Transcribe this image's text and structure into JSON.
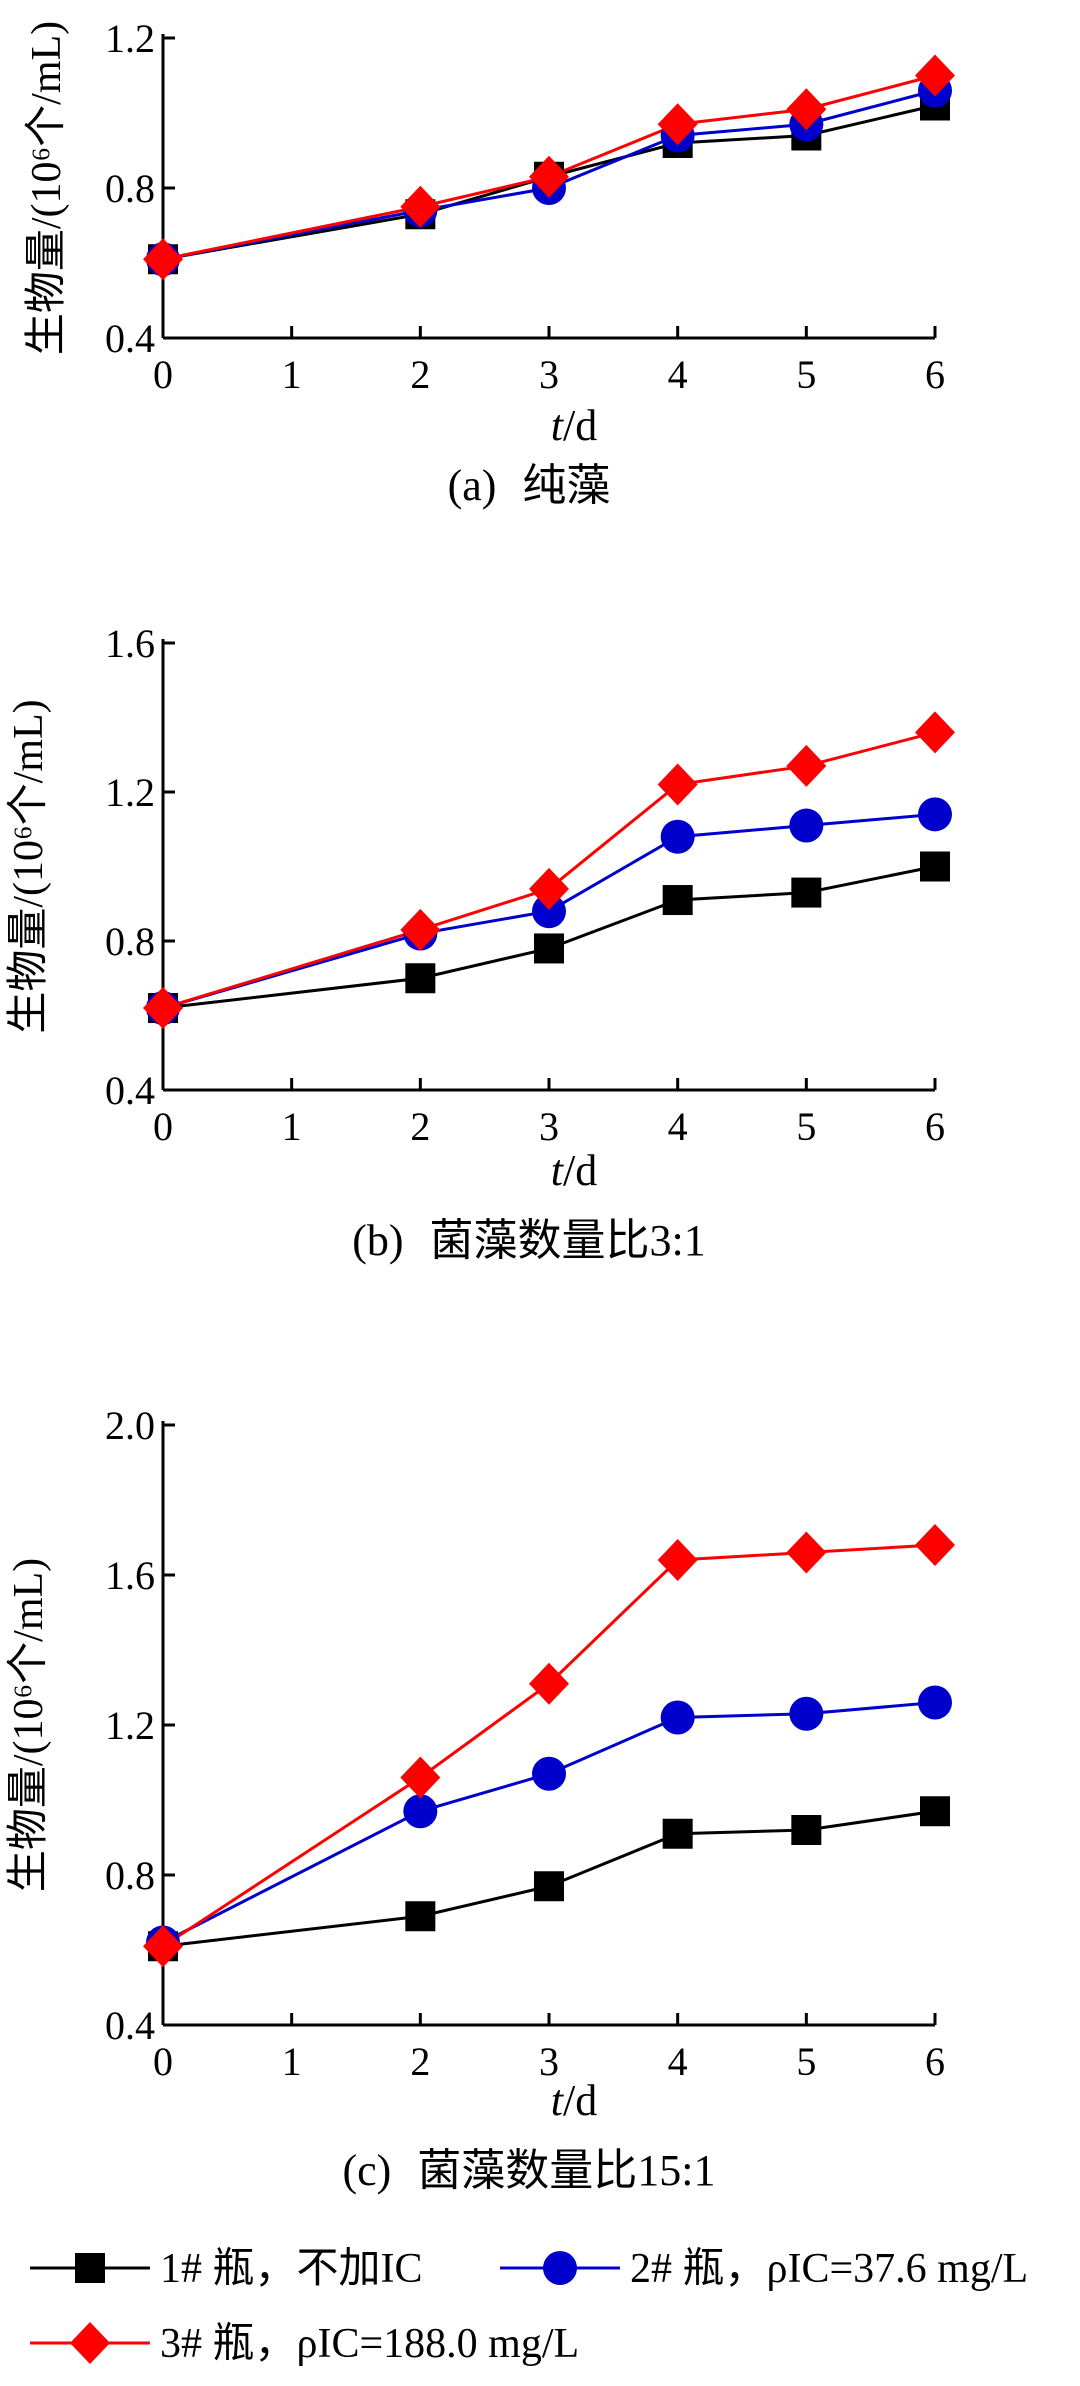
{
  "chart_data": [
    {
      "type": "line",
      "caption_prefix": "(a)",
      "caption_text": "纯藻",
      "xlabel_italic": "t",
      "xlabel_unit": "/d",
      "ylabel": "生物量/(10⁶个/mL)",
      "xlim": [
        0,
        6
      ],
      "ylim": [
        0.4,
        1.2
      ],
      "xticks": [
        0,
        1,
        2,
        3,
        4,
        5,
        6
      ],
      "yticks": [
        0.4,
        0.8,
        1.2
      ],
      "ytick_labels": [
        "0.4",
        "0.8",
        "1.2"
      ],
      "x": [
        0,
        2,
        3,
        4,
        5,
        6
      ],
      "series": [
        {
          "key": "s1",
          "values": [
            0.61,
            0.73,
            0.83,
            0.92,
            0.94,
            1.02
          ]
        },
        {
          "key": "s2",
          "values": [
            0.61,
            0.74,
            0.8,
            0.94,
            0.97,
            1.06
          ]
        },
        {
          "key": "s3",
          "values": [
            0.61,
            0.75,
            0.83,
            0.97,
            1.01,
            1.1
          ]
        }
      ]
    },
    {
      "type": "line",
      "caption_prefix": "(b)",
      "caption_text": "菌藻数量比3:1",
      "xlabel_italic": "t",
      "xlabel_unit": "/d",
      "ylabel": "生物量/(10⁶个/mL)",
      "xlim": [
        0,
        6
      ],
      "ylim": [
        0.4,
        1.6
      ],
      "xticks": [
        0,
        1,
        2,
        3,
        4,
        5,
        6
      ],
      "yticks": [
        0.4,
        0.8,
        1.2,
        1.6
      ],
      "ytick_labels": [
        "0.4",
        "0.8",
        "1.2",
        "1.6"
      ],
      "x": [
        0,
        2,
        3,
        4,
        5,
        6
      ],
      "series": [
        {
          "key": "s1",
          "values": [
            0.62,
            0.7,
            0.78,
            0.91,
            0.93,
            1.0
          ]
        },
        {
          "key": "s2",
          "values": [
            0.62,
            0.82,
            0.88,
            1.08,
            1.11,
            1.14
          ]
        },
        {
          "key": "s3",
          "values": [
            0.62,
            0.83,
            0.94,
            1.22,
            1.27,
            1.36
          ]
        }
      ]
    },
    {
      "type": "line",
      "caption_prefix": "(c)",
      "caption_text": "菌藻数量比15:1",
      "xlabel_italic": "t",
      "xlabel_unit": "/d",
      "ylabel": "生物量/(10⁶个/mL)",
      "xlim": [
        0,
        6
      ],
      "ylim": [
        0.4,
        2.0
      ],
      "xticks": [
        0,
        1,
        2,
        3,
        4,
        5,
        6
      ],
      "yticks": [
        0.4,
        0.8,
        1.2,
        1.6,
        2.0
      ],
      "ytick_labels": [
        "0.4",
        "0.8",
        "1.2",
        "1.6",
        "2.0"
      ],
      "x": [
        0,
        2,
        3,
        4,
        5,
        6
      ],
      "series": [
        {
          "key": "s1",
          "values": [
            0.61,
            0.69,
            0.77,
            0.91,
            0.92,
            0.97
          ]
        },
        {
          "key": "s2",
          "values": [
            0.62,
            0.97,
            1.07,
            1.22,
            1.23,
            1.26
          ]
        },
        {
          "key": "s3",
          "values": [
            0.61,
            1.06,
            1.31,
            1.64,
            1.66,
            1.68
          ]
        }
      ]
    }
  ],
  "legend": [
    {
      "key": "s1",
      "text": "1# 瓶，不加IC",
      "color": "#000000",
      "marker": "square"
    },
    {
      "key": "s2",
      "text": "2# 瓶，ρIC=37.6 mg/L",
      "color": "#0000cc",
      "marker": "circle"
    },
    {
      "key": "s3",
      "text": "3# 瓶，ρIC=188.0 mg/L",
      "color": "#ff0000",
      "marker": "diamond"
    }
  ]
}
